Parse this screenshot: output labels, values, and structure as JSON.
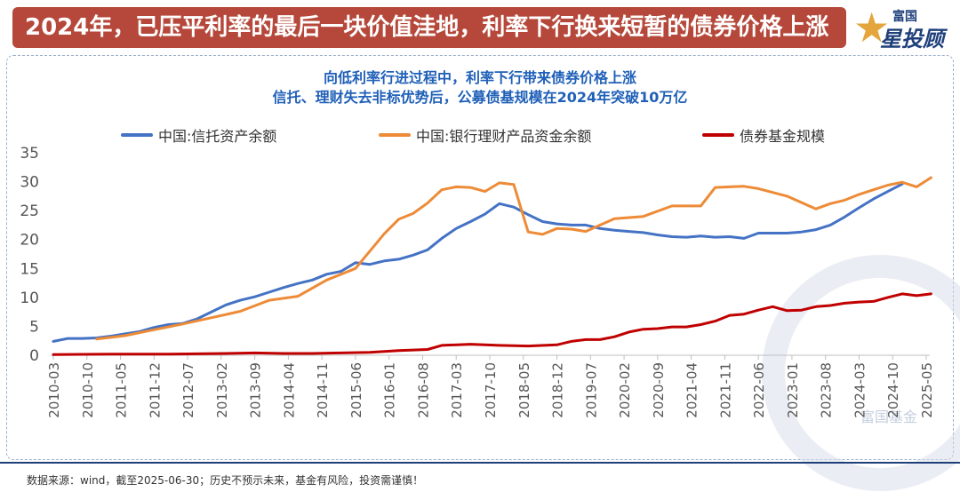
{
  "header": {
    "title": "2024年，已压平利率的最后一块价值洼地，利率下行换来短暂的债券价格上涨"
  },
  "logo": {
    "line1": "富国",
    "line2": "星投顾"
  },
  "subtitle": {
    "line1": "向低利率行进过程中，利率下行带来债券价格上涨",
    "line2": "信托、理财失去非标优势后，公募债基规模在2024年突破10万亿"
  },
  "watermark": "富国基金",
  "source": "数据来源：wind，截至2025-06-30；历史不预示未来，基金有风险，投资需谨慎！",
  "colors": {
    "trust": "#4472c4",
    "wealth": "#ed8b37",
    "bond": "#c00000",
    "title_bg": "#b5483a",
    "subtitle": "#2060b8"
  },
  "chart_data": {
    "type": "line",
    "ylim": [
      0,
      35
    ],
    "yticks": [
      0,
      5,
      10,
      15,
      20,
      25,
      30,
      35
    ],
    "x_ticks": [
      "2010-03",
      "2010-10",
      "2011-05",
      "2011-12",
      "2012-07",
      "2013-02",
      "2013-09",
      "2014-04",
      "2014-11",
      "2015-06",
      "2016-01",
      "2016-08",
      "2017-03",
      "2017-10",
      "2018-05",
      "2018-12",
      "2019-07",
      "2020-02",
      "2020-09",
      "2021-04",
      "2021-11",
      "2022-06",
      "2023-01",
      "2023-08",
      "2024-03",
      "2024-10",
      "2025-05"
    ],
    "series": [
      {
        "name": "中国:信托资产余额",
        "color": "#4472c4",
        "x": [
          "2010-03",
          "2010-06",
          "2010-09",
          "2010-12",
          "2011-03",
          "2011-06",
          "2011-09",
          "2011-12",
          "2012-03",
          "2012-06",
          "2012-09",
          "2012-12",
          "2013-03",
          "2013-06",
          "2013-09",
          "2013-12",
          "2014-03",
          "2014-06",
          "2014-09",
          "2014-12",
          "2015-03",
          "2015-06",
          "2015-09",
          "2015-12",
          "2016-03",
          "2016-06",
          "2016-09",
          "2016-12",
          "2017-03",
          "2017-06",
          "2017-09",
          "2017-12",
          "2018-03",
          "2018-06",
          "2018-09",
          "2018-12",
          "2019-03",
          "2019-06",
          "2019-09",
          "2019-12",
          "2020-03",
          "2020-06",
          "2020-09",
          "2020-12",
          "2021-03",
          "2021-06",
          "2021-09",
          "2021-12",
          "2022-03",
          "2022-06",
          "2022-09",
          "2022-12",
          "2023-03",
          "2023-06",
          "2023-09",
          "2023-12",
          "2024-03",
          "2024-06",
          "2024-09",
          "2024-12"
        ],
        "values": [
          2.4,
          2.9,
          2.9,
          3.0,
          3.3,
          3.7,
          4.1,
          4.8,
          5.3,
          5.5,
          6.3,
          7.5,
          8.7,
          9.5,
          10.1,
          10.9,
          11.7,
          12.4,
          13.0,
          14.0,
          14.5,
          16.0,
          15.7,
          16.3,
          16.6,
          17.3,
          18.2,
          20.2,
          21.9,
          23.1,
          24.4,
          26.2,
          25.6,
          24.3,
          23.1,
          22.7,
          22.5,
          22.5,
          21.9,
          21.6,
          21.4,
          21.2,
          20.8,
          20.5,
          20.4,
          20.6,
          20.4,
          20.5,
          20.2,
          21.1,
          21.1,
          21.1,
          21.3,
          21.7,
          22.5,
          23.9,
          25.5,
          27.0,
          28.3,
          29.6
        ]
      },
      {
        "name": "中国:银行理财产品资金余额",
        "color": "#ed8b37",
        "x": [
          "2010-12",
          "2011-06",
          "2011-12",
          "2012-06",
          "2012-12",
          "2013-06",
          "2013-12",
          "2014-06",
          "2014-12",
          "2015-06",
          "2015-12",
          "2016-03",
          "2016-06",
          "2016-09",
          "2016-12",
          "2017-03",
          "2017-06",
          "2017-09",
          "2017-12",
          "2018-03",
          "2018-06",
          "2018-09",
          "2018-12",
          "2019-03",
          "2019-06",
          "2019-09",
          "2019-12",
          "2020-06",
          "2020-12",
          "2021-06",
          "2021-09",
          "2021-12",
          "2022-03",
          "2022-06",
          "2022-12",
          "2023-06",
          "2023-09",
          "2023-12",
          "2024-03",
          "2024-06",
          "2024-09",
          "2024-12",
          "2025-03",
          "2025-06"
        ],
        "values": [
          2.8,
          3.4,
          4.4,
          5.4,
          6.5,
          7.6,
          9.5,
          10.2,
          13.0,
          15.0,
          21.0,
          23.5,
          24.5,
          26.3,
          28.6,
          29.1,
          29.0,
          28.3,
          29.8,
          29.5,
          21.3,
          20.9,
          21.9,
          21.8,
          21.4,
          22.5,
          23.6,
          24.0,
          25.8,
          25.8,
          29.0,
          29.1,
          29.2,
          28.8,
          27.5,
          25.3,
          26.2,
          26.8,
          27.8,
          28.6,
          29.4,
          29.9,
          29.1,
          30.7
        ]
      },
      {
        "name": "债券基金规模",
        "color": "#c00000",
        "x": [
          "2010-03",
          "2011-03",
          "2012-03",
          "2013-03",
          "2013-09",
          "2014-03",
          "2014-09",
          "2015-03",
          "2015-09",
          "2016-03",
          "2016-09",
          "2016-12",
          "2017-06",
          "2017-12",
          "2018-06",
          "2018-12",
          "2019-03",
          "2019-06",
          "2019-09",
          "2019-12",
          "2020-03",
          "2020-06",
          "2020-09",
          "2020-12",
          "2021-03",
          "2021-06",
          "2021-09",
          "2021-12",
          "2022-03",
          "2022-06",
          "2022-09",
          "2022-12",
          "2023-03",
          "2023-06",
          "2023-09",
          "2023-12",
          "2024-03",
          "2024-06",
          "2024-09",
          "2024-12",
          "2025-03",
          "2025-06"
        ],
        "values": [
          0.1,
          0.2,
          0.2,
          0.3,
          0.4,
          0.3,
          0.3,
          0.4,
          0.5,
          0.8,
          1.0,
          1.7,
          1.9,
          1.7,
          1.6,
          1.8,
          2.4,
          2.7,
          2.7,
          3.2,
          4.0,
          4.5,
          4.6,
          4.9,
          4.9,
          5.3,
          5.9,
          6.9,
          7.1,
          7.8,
          8.4,
          7.7,
          7.8,
          8.4,
          8.6,
          9.0,
          9.2,
          9.3,
          10.0,
          10.6,
          10.3,
          10.6
        ]
      }
    ]
  }
}
